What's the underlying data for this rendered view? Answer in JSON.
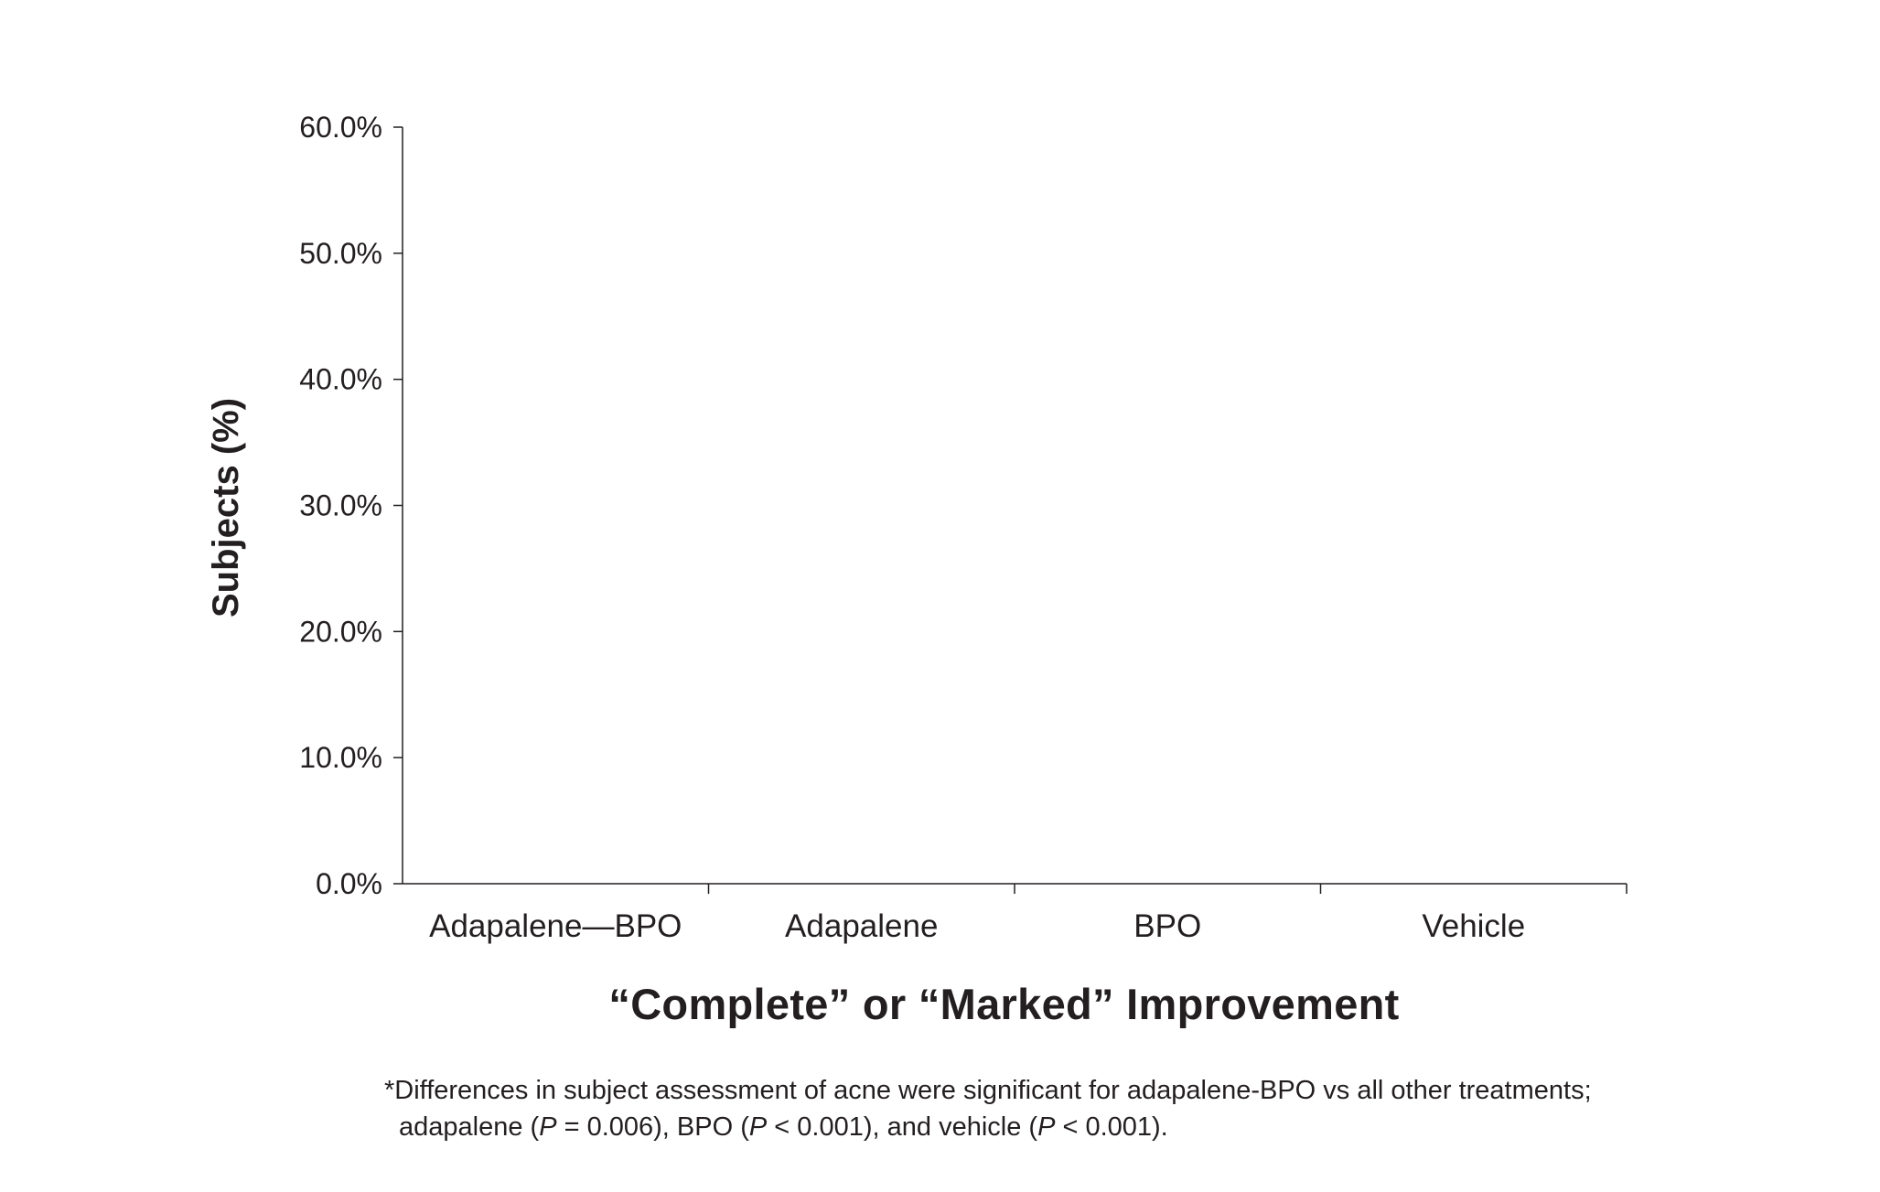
{
  "chart_data": {
    "type": "bar",
    "title": "",
    "xlabel": "“Complete” or “Marked” Improvement",
    "ylabel": "Subjects (%)",
    "categories": [
      "Adapalene—BPO",
      "Adapalene",
      "BPO",
      "Vehicle"
    ],
    "values": [
      null,
      null,
      null,
      null
    ],
    "ylim": [
      0,
      60
    ],
    "yticks": [
      "0.0%",
      "10.0%",
      "20.0%",
      "30.0%",
      "40.0%",
      "50.0%",
      "60.0%"
    ],
    "grid": false
  },
  "footnote": {
    "line1": "*Differences in subject assessment of acne were significant for adapalene-BPO vs all other treatments;",
    "line2_a": "adapalene (",
    "p1_italic": "P",
    "line2_b": " = 0.006), BPO (",
    "p2_italic": "P",
    "line2_c": " < 0.001), and vehicle (",
    "p3_italic": "P",
    "line2_d": " < 0.001)."
  },
  "colors": {
    "axis": "#231f20",
    "text": "#231f20",
    "background": "#ffffff"
  }
}
